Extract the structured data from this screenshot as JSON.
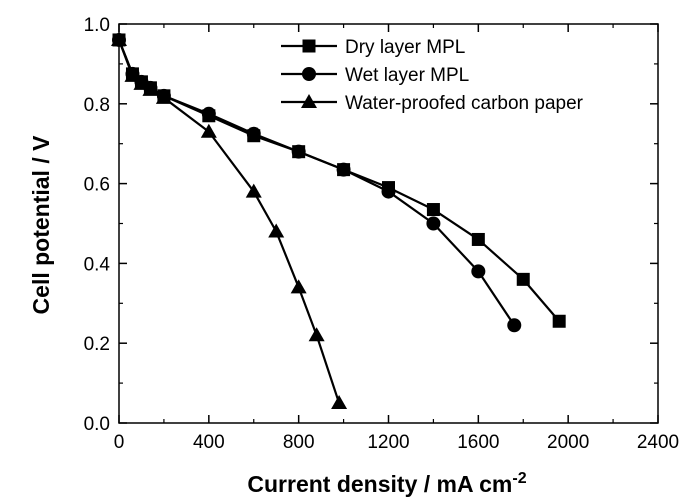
{
  "chart_data": {
    "type": "line",
    "title": "",
    "xlabel": "Current density / mA cm",
    "xlabel_superscript": "-2",
    "ylabel": "Cell potential / V",
    "xlim": [
      0,
      2400
    ],
    "ylim": [
      0.0,
      1.0
    ],
    "x_ticks": [
      "0",
      "400",
      "800",
      "1200",
      "1600",
      "2000",
      "2400"
    ],
    "y_ticks": [
      "0.0",
      "0.2",
      "0.4",
      "0.6",
      "0.8",
      "1.0"
    ],
    "grid": false,
    "legend_position": "top-right",
    "series": [
      {
        "name": "Dry layer MPL",
        "marker": "square",
        "x": [
          0,
          60,
          100,
          140,
          200,
          400,
          600,
          800,
          1000,
          1200,
          1400,
          1600,
          1800,
          1960
        ],
        "y": [
          0.96,
          0.875,
          0.855,
          0.84,
          0.82,
          0.77,
          0.72,
          0.68,
          0.635,
          0.59,
          0.535,
          0.46,
          0.36,
          0.255
        ]
      },
      {
        "name": "Wet layer MPL",
        "marker": "circle",
        "x": [
          0,
          60,
          100,
          140,
          200,
          400,
          600,
          800,
          1000,
          1200,
          1400,
          1600,
          1760
        ],
        "y": [
          0.96,
          0.875,
          0.855,
          0.84,
          0.82,
          0.775,
          0.725,
          0.68,
          0.635,
          0.58,
          0.5,
          0.38,
          0.245
        ]
      },
      {
        "name": "Water-proofed carbon paper",
        "marker": "triangle",
        "x": [
          0,
          60,
          100,
          140,
          200,
          400,
          600,
          700,
          800,
          880,
          980
        ],
        "y": [
          0.96,
          0.87,
          0.85,
          0.835,
          0.815,
          0.73,
          0.58,
          0.48,
          0.34,
          0.22,
          0.05
        ]
      }
    ]
  }
}
